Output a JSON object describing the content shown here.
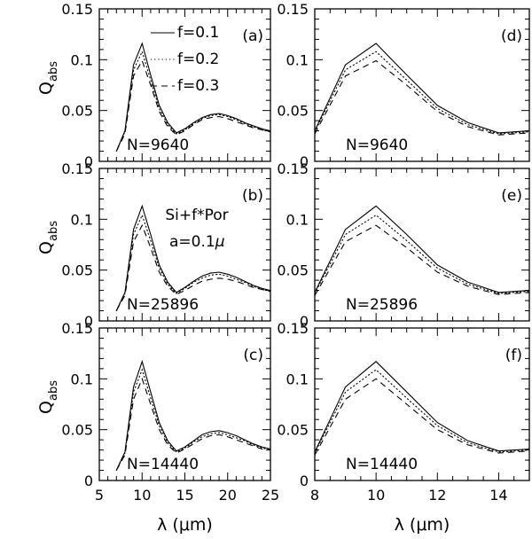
{
  "chart_data": {
    "type": "line",
    "y_axis": {
      "ylim": [
        0,
        0.15
      ],
      "ticks": [
        0,
        0.05,
        0.1,
        0.15
      ],
      "tick_labels": [
        "0",
        "0.05",
        "0.1",
        "0.15"
      ]
    },
    "left_x_axis": {
      "xlim": [
        5,
        25
      ],
      "ticks": [
        5,
        10,
        15,
        20,
        25
      ],
      "tick_labels": [
        "5",
        "10",
        "15",
        "20",
        "25"
      ],
      "xlabel": "λ (μm)"
    },
    "right_x_axis": {
      "xlim": [
        8,
        15
      ],
      "ticks": [
        8,
        10,
        12,
        14
      ],
      "tick_labels": [
        "8",
        "10",
        "12",
        "14"
      ],
      "xlabel": "λ (μm)"
    },
    "ylabel_main": "Q",
    "ylabel_sub": "abs",
    "legend": [
      {
        "label": "f=0.1",
        "dash": "solid"
      },
      {
        "label": "f=0.2",
        "dash": "dotted"
      },
      {
        "label": "f=0.3",
        "dash": "dashed"
      }
    ],
    "annotations": {
      "material": "Si+f*Por",
      "radius_prefix": "a=0.1",
      "radius_unit": "μ"
    },
    "panels": [
      {
        "id": "a",
        "label": "(a)",
        "n_label": "N=9640",
        "axis": "left",
        "series": [
          {
            "name": "f=0.1",
            "x": [
              7,
              8,
              9,
              10,
              11,
              12,
              13,
              14,
              15,
              16,
              17,
              18,
              19,
              20,
              21,
              22,
              23,
              24,
              25
            ],
            "y": [
              0.01,
              0.03,
              0.095,
              0.116,
              0.085,
              0.055,
              0.038,
              0.028,
              0.032,
              0.038,
              0.043,
              0.046,
              0.047,
              0.045,
              0.042,
              0.038,
              0.035,
              0.032,
              0.03
            ]
          },
          {
            "name": "f=0.2",
            "x": [
              7,
              8,
              9,
              10,
              11,
              12,
              13,
              14,
              15,
              16,
              17,
              18,
              19,
              20,
              21,
              22,
              23,
              24,
              25
            ],
            "y": [
              0.01,
              0.029,
              0.09,
              0.108,
              0.08,
              0.052,
              0.036,
              0.027,
              0.031,
              0.037,
              0.042,
              0.045,
              0.046,
              0.044,
              0.041,
              0.037,
              0.034,
              0.031,
              0.029
            ]
          },
          {
            "name": "f=0.3",
            "x": [
              7,
              8,
              9,
              10,
              11,
              12,
              13,
              14,
              15,
              16,
              17,
              18,
              19,
              20,
              21,
              22,
              23,
              24,
              25
            ],
            "y": [
              0.01,
              0.027,
              0.084,
              0.099,
              0.075,
              0.049,
              0.034,
              0.026,
              0.03,
              0.036,
              0.041,
              0.043,
              0.044,
              0.042,
              0.039,
              0.036,
              0.033,
              0.031,
              0.029
            ]
          }
        ]
      },
      {
        "id": "b",
        "label": "(b)",
        "n_label": "N=25896",
        "axis": "left",
        "series": [
          {
            "name": "f=0.1",
            "x": [
              7,
              8,
              9,
              10,
              11,
              12,
              13,
              14,
              15,
              16,
              17,
              18,
              19,
              20,
              21,
              22,
              23,
              24,
              25
            ],
            "y": [
              0.01,
              0.028,
              0.09,
              0.113,
              0.085,
              0.055,
              0.038,
              0.028,
              0.033,
              0.039,
              0.044,
              0.047,
              0.048,
              0.046,
              0.043,
              0.039,
              0.035,
              0.032,
              0.03
            ]
          },
          {
            "name": "f=0.2",
            "x": [
              7,
              8,
              9,
              10,
              11,
              12,
              13,
              14,
              15,
              16,
              17,
              18,
              19,
              20,
              21,
              22,
              23,
              24,
              25
            ],
            "y": [
              0.01,
              0.027,
              0.085,
              0.104,
              0.079,
              0.052,
              0.036,
              0.027,
              0.032,
              0.038,
              0.042,
              0.045,
              0.046,
              0.044,
              0.041,
              0.038,
              0.034,
              0.031,
              0.029
            ]
          },
          {
            "name": "f=0.3",
            "x": [
              7,
              8,
              9,
              10,
              11,
              12,
              13,
              14,
              15,
              16,
              17,
              18,
              19,
              20,
              21,
              22,
              23,
              24,
              25
            ],
            "y": [
              0.01,
              0.025,
              0.078,
              0.094,
              0.072,
              0.048,
              0.034,
              0.026,
              0.03,
              0.035,
              0.039,
              0.041,
              0.042,
              0.041,
              0.039,
              0.036,
              0.033,
              0.031,
              0.029
            ]
          }
        ]
      },
      {
        "id": "c",
        "label": "(c)",
        "n_label": "N=14440",
        "axis": "left",
        "series": [
          {
            "name": "f=0.1",
            "x": [
              7,
              8,
              9,
              10,
              11,
              12,
              13,
              14,
              15,
              16,
              17,
              18,
              19,
              20,
              21,
              22,
              23,
              24,
              25
            ],
            "y": [
              0.01,
              0.028,
              0.092,
              0.117,
              0.087,
              0.057,
              0.039,
              0.029,
              0.033,
              0.039,
              0.045,
              0.048,
              0.049,
              0.047,
              0.044,
              0.04,
              0.036,
              0.033,
              0.031
            ]
          },
          {
            "name": "f=0.2",
            "x": [
              7,
              8,
              9,
              10,
              11,
              12,
              13,
              14,
              15,
              16,
              17,
              18,
              19,
              20,
              21,
              22,
              23,
              24,
              25
            ],
            "y": [
              0.01,
              0.027,
              0.087,
              0.109,
              0.081,
              0.054,
              0.037,
              0.028,
              0.032,
              0.038,
              0.043,
              0.046,
              0.047,
              0.045,
              0.042,
              0.039,
              0.035,
              0.032,
              0.03
            ]
          },
          {
            "name": "f=0.3",
            "x": [
              7,
              8,
              9,
              10,
              11,
              12,
              13,
              14,
              15,
              16,
              17,
              18,
              19,
              20,
              21,
              22,
              23,
              24,
              25
            ],
            "y": [
              0.01,
              0.025,
              0.08,
              0.1,
              0.075,
              0.05,
              0.035,
              0.027,
              0.031,
              0.036,
              0.041,
              0.044,
              0.045,
              0.043,
              0.04,
              0.037,
              0.034,
              0.031,
              0.03
            ]
          }
        ]
      },
      {
        "id": "d",
        "label": "(d)",
        "n_label": "N=9640",
        "axis": "right",
        "series": [
          {
            "name": "f=0.1",
            "x": [
              8,
              9,
              10,
              11,
              12,
              13,
              14,
              15
            ],
            "y": [
              0.03,
              0.095,
              0.116,
              0.085,
              0.055,
              0.038,
              0.028,
              0.03
            ]
          },
          {
            "name": "f=0.2",
            "x": [
              8,
              9,
              10,
              11,
              12,
              13,
              14,
              15
            ],
            "y": [
              0.029,
              0.09,
              0.108,
              0.08,
              0.052,
              0.036,
              0.027,
              0.029
            ]
          },
          {
            "name": "f=0.3",
            "x": [
              8,
              9,
              10,
              11,
              12,
              13,
              14,
              15
            ],
            "y": [
              0.027,
              0.084,
              0.099,
              0.075,
              0.049,
              0.034,
              0.026,
              0.028
            ]
          }
        ]
      },
      {
        "id": "e",
        "label": "(e)",
        "n_label": "N=25896",
        "axis": "right",
        "series": [
          {
            "name": "f=0.1",
            "x": [
              8,
              9,
              10,
              11,
              12,
              13,
              14,
              15
            ],
            "y": [
              0.028,
              0.09,
              0.113,
              0.085,
              0.055,
              0.038,
              0.028,
              0.03
            ]
          },
          {
            "name": "f=0.2",
            "x": [
              8,
              9,
              10,
              11,
              12,
              13,
              14,
              15
            ],
            "y": [
              0.027,
              0.085,
              0.104,
              0.079,
              0.052,
              0.036,
              0.027,
              0.029
            ]
          },
          {
            "name": "f=0.3",
            "x": [
              8,
              9,
              10,
              11,
              12,
              13,
              14,
              15
            ],
            "y": [
              0.025,
              0.078,
              0.094,
              0.072,
              0.048,
              0.034,
              0.026,
              0.028
            ]
          }
        ]
      },
      {
        "id": "f",
        "label": "(f)",
        "n_label": "N=14440",
        "axis": "right",
        "series": [
          {
            "name": "f=0.1",
            "x": [
              8,
              9,
              10,
              11,
              12,
              13,
              14,
              15
            ],
            "y": [
              0.028,
              0.092,
              0.117,
              0.087,
              0.057,
              0.039,
              0.029,
              0.031
            ]
          },
          {
            "name": "f=0.2",
            "x": [
              8,
              9,
              10,
              11,
              12,
              13,
              14,
              15
            ],
            "y": [
              0.027,
              0.087,
              0.109,
              0.081,
              0.054,
              0.037,
              0.028,
              0.03
            ]
          },
          {
            "name": "f=0.3",
            "x": [
              8,
              9,
              10,
              11,
              12,
              13,
              14,
              15
            ],
            "y": [
              0.025,
              0.08,
              0.1,
              0.075,
              0.05,
              0.035,
              0.027,
              0.029
            ]
          }
        ]
      }
    ]
  }
}
